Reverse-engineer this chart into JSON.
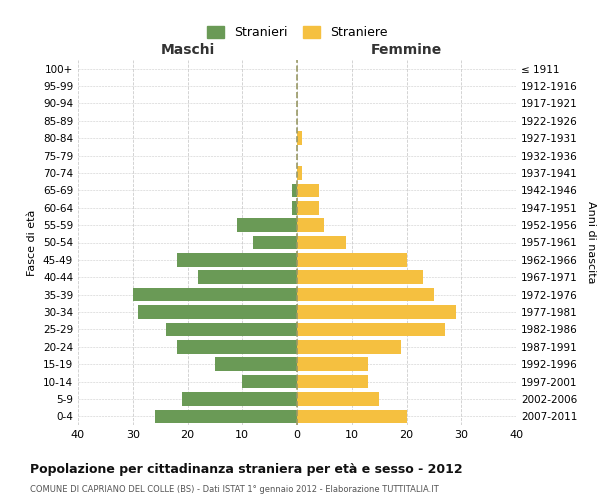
{
  "age_groups": [
    "0-4",
    "5-9",
    "10-14",
    "15-19",
    "20-24",
    "25-29",
    "30-34",
    "35-39",
    "40-44",
    "45-49",
    "50-54",
    "55-59",
    "60-64",
    "65-69",
    "70-74",
    "75-79",
    "80-84",
    "85-89",
    "90-94",
    "95-99",
    "100+"
  ],
  "birth_years": [
    "2007-2011",
    "2002-2006",
    "1997-2001",
    "1992-1996",
    "1987-1991",
    "1982-1986",
    "1977-1981",
    "1972-1976",
    "1967-1971",
    "1962-1966",
    "1957-1961",
    "1952-1956",
    "1947-1951",
    "1942-1946",
    "1937-1941",
    "1932-1936",
    "1927-1931",
    "1922-1926",
    "1917-1921",
    "1912-1916",
    "≤ 1911"
  ],
  "maschi": [
    26,
    21,
    10,
    15,
    22,
    24,
    29,
    30,
    18,
    22,
    8,
    11,
    1,
    1,
    0,
    0,
    0,
    0,
    0,
    0,
    0
  ],
  "femmine": [
    20,
    15,
    13,
    13,
    19,
    27,
    29,
    25,
    23,
    20,
    9,
    5,
    4,
    4,
    1,
    0,
    1,
    0,
    0,
    0,
    0
  ],
  "maschi_color": "#6a9a56",
  "femmine_color": "#f5c040",
  "title": "Popolazione per cittadinanza straniera per età e sesso - 2012",
  "subtitle": "COMUNE DI CAPRIANO DEL COLLE (BS) - Dati ISTAT 1° gennaio 2012 - Elaborazione TUTTITALIA.IT",
  "legend_maschi": "Stranieri",
  "legend_femmine": "Straniere",
  "xlabel_left": "Maschi",
  "xlabel_right": "Femmine",
  "ylabel_left": "Fasce di età",
  "ylabel_right": "Anni di nascita",
  "xlim": 40,
  "bg_color": "#ffffff",
  "grid_color": "#cccccc",
  "dashed_line_color": "#999966"
}
